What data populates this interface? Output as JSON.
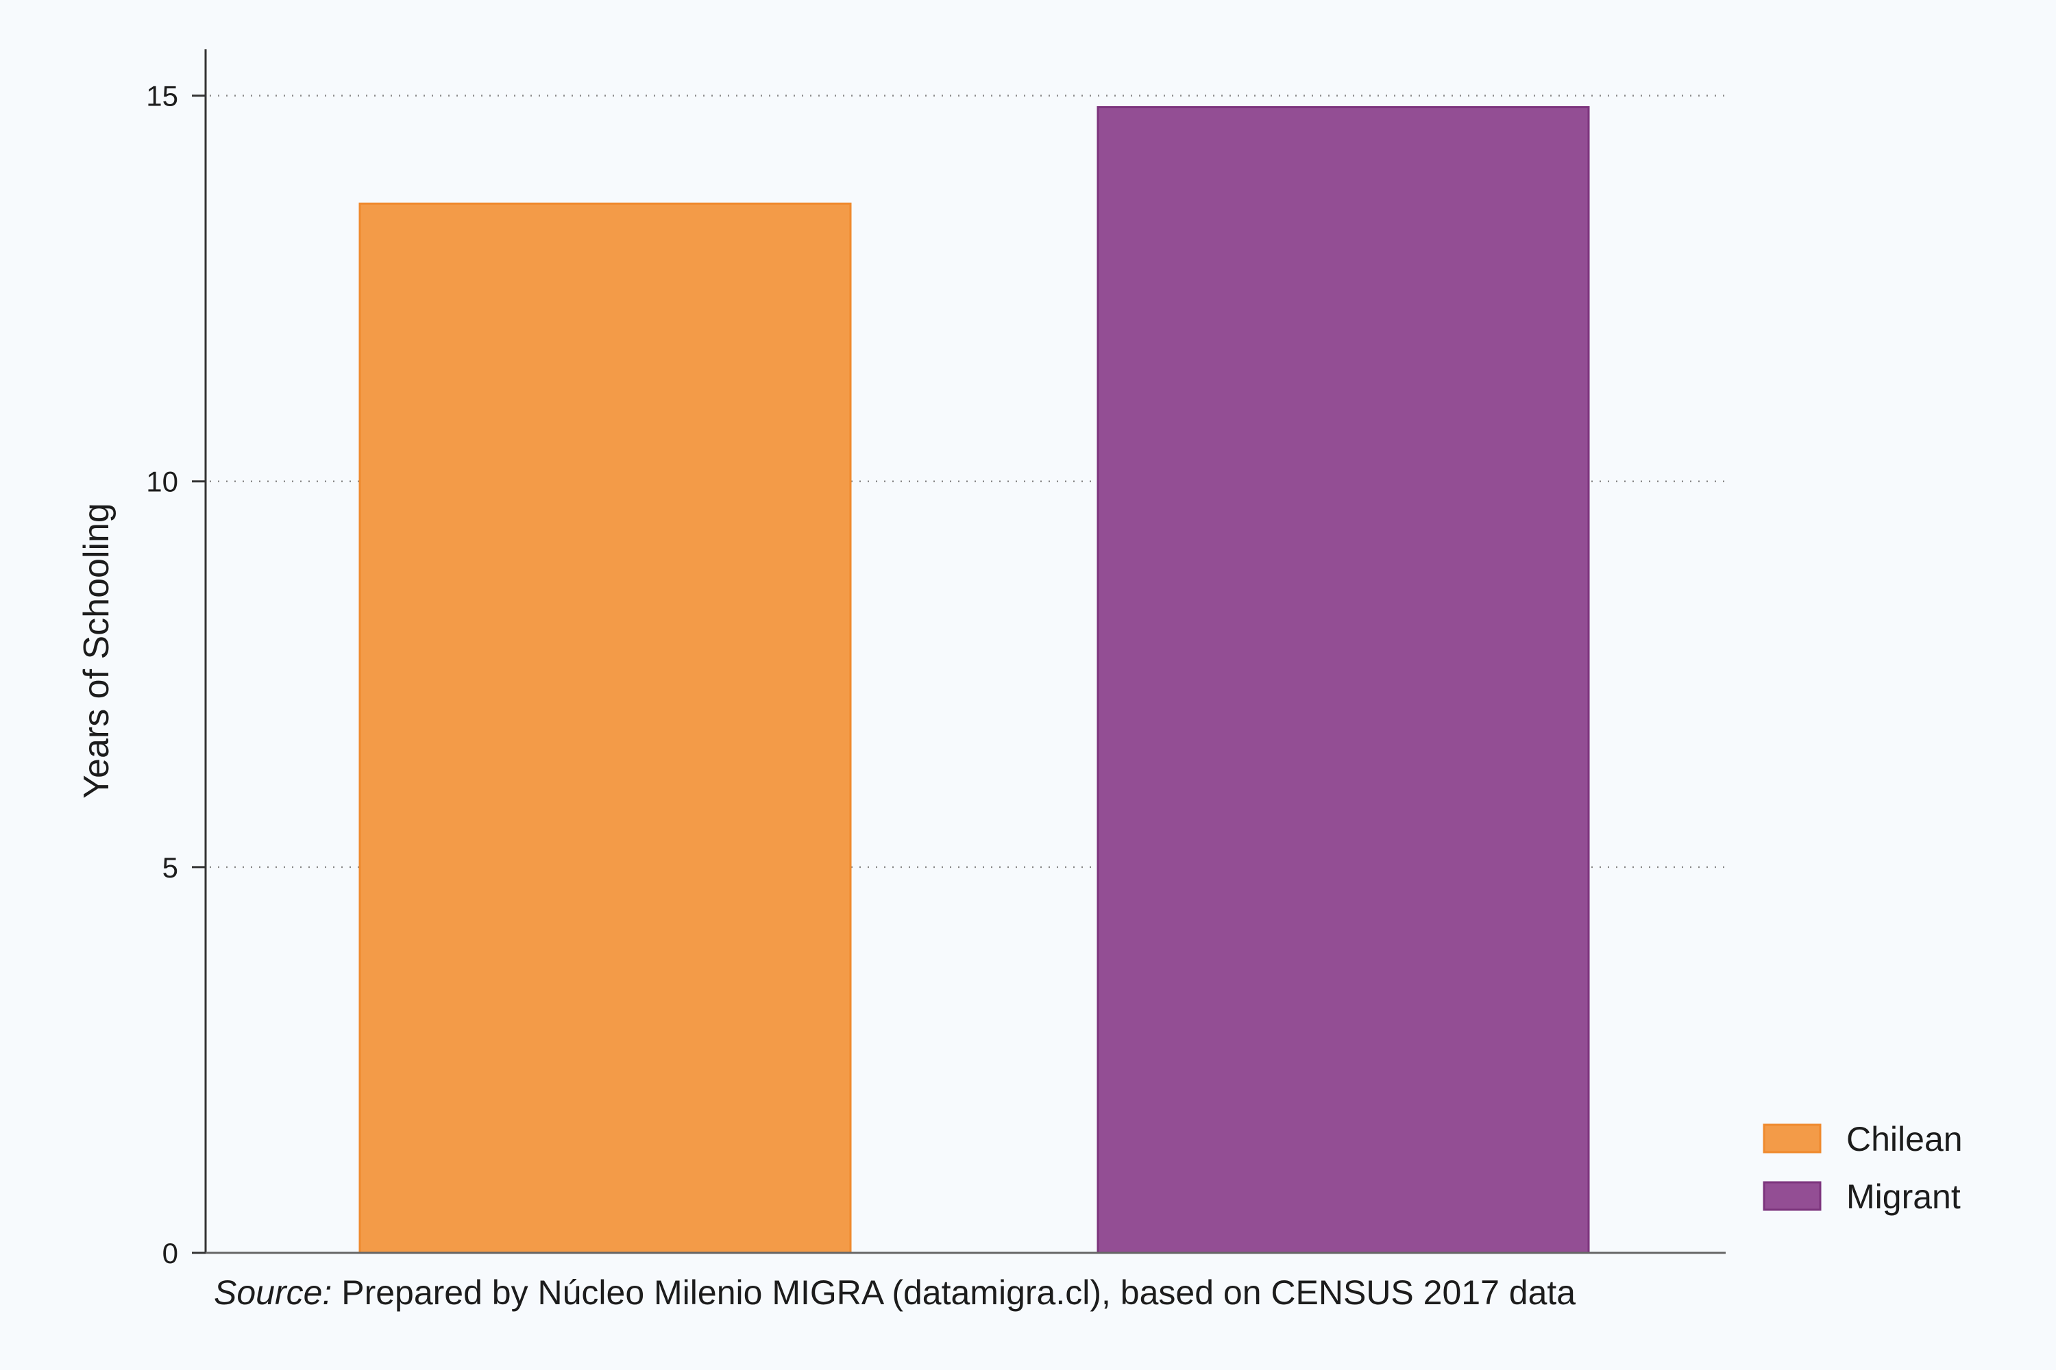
{
  "chart_data": {
    "type": "bar",
    "categories": [
      "Chilean",
      "Migrant"
    ],
    "values": [
      13.6,
      14.85
    ],
    "colors": [
      "#f39b48",
      "#934e94"
    ],
    "stroke_colors": [
      "#ef8a2e",
      "#7c347d"
    ],
    "title": "",
    "xlabel": "",
    "ylabel": "Years of Schooling",
    "ylim": [
      0,
      15.6
    ],
    "yticks": [
      0,
      5,
      10,
      15
    ],
    "ytick_labels": [
      "0",
      "5",
      "10",
      "15"
    ],
    "grid": "horizontal dotted",
    "legend": {
      "placement": "bottom-right",
      "entries": [
        "Chilean",
        "Migrant"
      ]
    }
  },
  "source_note": {
    "prefix": "Source:",
    "text": " Prepared by Núcleo Milenio MIGRA (datamigra.cl), based on CENSUS 2017 data"
  }
}
